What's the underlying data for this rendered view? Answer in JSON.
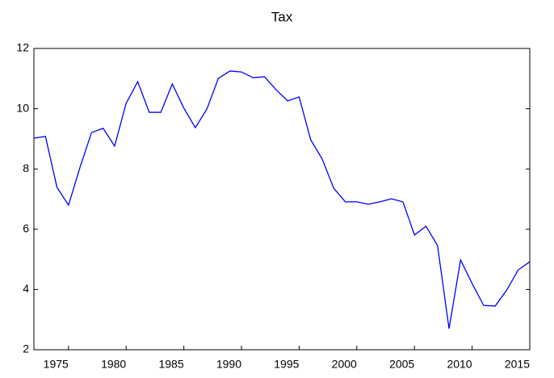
{
  "chart_data": {
    "type": "line",
    "title": "Tax",
    "x": [
      1972,
      1973,
      1974,
      1975,
      1976,
      1977,
      1978,
      1979,
      1980,
      1981,
      1982,
      1983,
      1984,
      1985,
      1986,
      1987,
      1988,
      1989,
      1990,
      1991,
      1992,
      1993,
      1994,
      1995,
      1996,
      1997,
      1998,
      1999,
      2000,
      2001,
      2002,
      2003,
      2004,
      2005,
      2006,
      2007,
      2008,
      2009,
      2010,
      2011,
      2012,
      2013,
      2014,
      2015
    ],
    "series": [
      {
        "name": "Tax",
        "color": "#0000ff",
        "values": [
          9.02,
          9.08,
          7.39,
          6.8,
          8.06,
          9.21,
          9.35,
          8.76,
          10.18,
          10.9,
          9.88,
          9.88,
          10.82,
          10.02,
          9.37,
          9.99,
          11.01,
          11.25,
          11.22,
          11.03,
          11.06,
          10.63,
          10.26,
          10.39,
          8.97,
          8.33,
          7.36,
          6.91,
          6.91,
          6.83,
          6.91,
          7.01,
          6.91,
          5.81,
          6.1,
          5.46,
          2.7,
          4.98,
          4.2,
          3.47,
          3.45,
          3.98,
          4.65,
          4.92
        ]
      }
    ],
    "xlim": [
      1972,
      2015
    ],
    "xticks": [
      1975,
      1980,
      1985,
      1990,
      1995,
      2000,
      2005,
      2010,
      2015
    ],
    "ylim": [
      2,
      12
    ],
    "yticks": [
      2,
      4,
      6,
      8,
      10,
      12
    ],
    "grid": false
  }
}
